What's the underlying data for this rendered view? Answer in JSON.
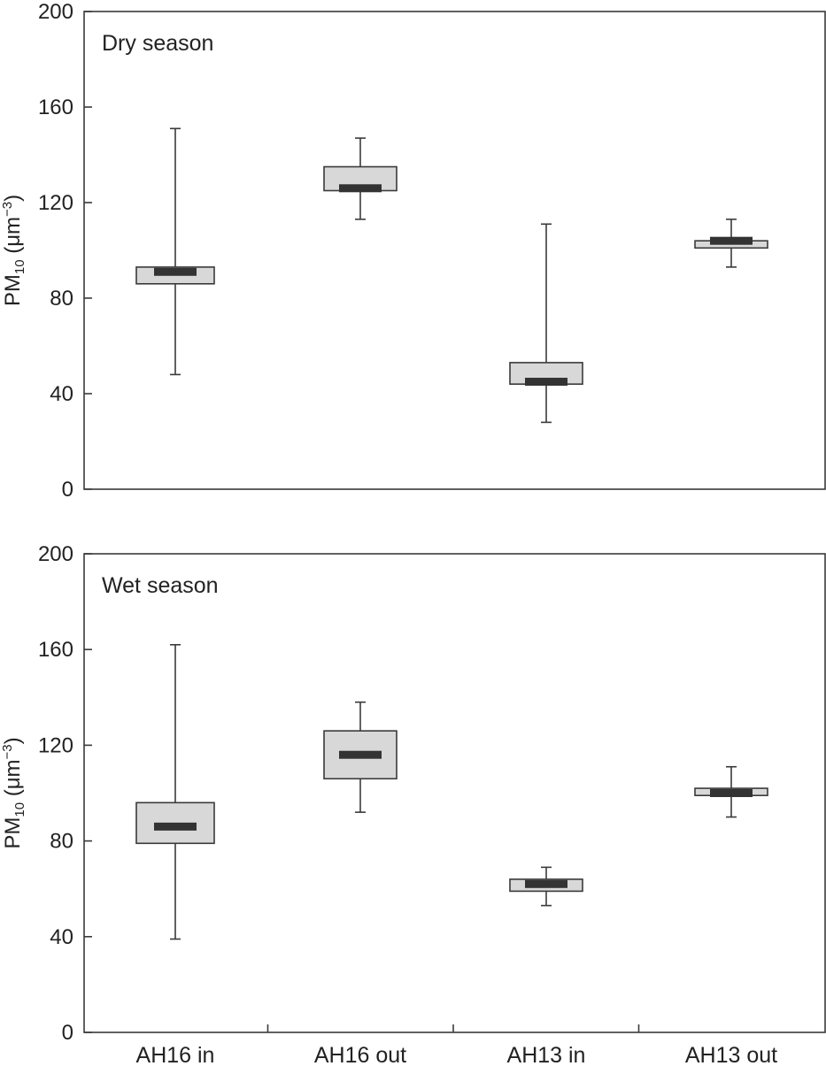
{
  "chart_data": [
    {
      "type": "box",
      "panel_label": "Dry season",
      "ylabel_main": "PM",
      "ylabel_sub": "10",
      "ylabel_unit": " (μm",
      "ylabel_sup": "−3",
      "ylabel_close": ")",
      "ylim": [
        0,
        200
      ],
      "yticks": [
        0,
        40,
        80,
        120,
        160,
        200
      ],
      "categories": [
        "AH16 in",
        "AH16 out",
        "AH13 in",
        "AH13 out"
      ],
      "boxes": [
        {
          "category": "AH16 in",
          "min": 48,
          "q1": 86,
          "median": 91,
          "q3": 93,
          "max": 151
        },
        {
          "category": "AH16 out",
          "min": 113,
          "q1": 125,
          "median": 126,
          "q3": 135,
          "max": 147
        },
        {
          "category": "AH13 in",
          "min": 28,
          "q1": 44,
          "median": 45,
          "q3": 53,
          "max": 111
        },
        {
          "category": "AH13 out",
          "min": 93,
          "q1": 101,
          "median": 104,
          "q3": 104,
          "max": 113
        }
      ]
    },
    {
      "type": "box",
      "panel_label": "Wet season",
      "ylabel_main": "PM",
      "ylabel_sub": "10",
      "ylabel_unit": " (μm",
      "ylabel_sup": "−3",
      "ylabel_close": ")",
      "ylim": [
        0,
        200
      ],
      "yticks": [
        0,
        40,
        80,
        120,
        160,
        200
      ],
      "categories": [
        "AH16 in",
        "AH16 out",
        "AH13 in",
        "AH13 out"
      ],
      "boxes": [
        {
          "category": "AH16 in",
          "min": 39,
          "q1": 79,
          "median": 86,
          "q3": 96,
          "max": 162
        },
        {
          "category": "AH16 out",
          "min": 92,
          "q1": 106,
          "median": 116,
          "q3": 126,
          "max": 138
        },
        {
          "category": "AH13 in",
          "min": 53,
          "q1": 59,
          "median": 62,
          "q3": 64,
          "max": 69
        },
        {
          "category": "AH13 out",
          "min": 90,
          "q1": 99,
          "median": 100,
          "q3": 102,
          "max": 111
        }
      ]
    }
  ],
  "colors": {
    "box_fill": "#d8d8d8",
    "median": "#333333",
    "axis": "#3a3a3a"
  }
}
